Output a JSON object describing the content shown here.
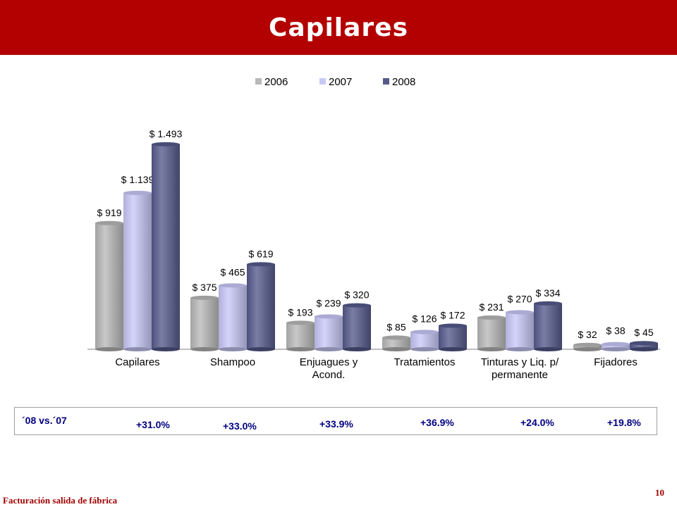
{
  "header": {
    "title": "Capilares"
  },
  "chart_data": {
    "type": "bar",
    "title": "",
    "xlabel": "",
    "ylabel": "",
    "ylim": [
      0,
      1600
    ],
    "grid": false,
    "legend_position": "top",
    "categories": [
      [
        "Capilares"
      ],
      [
        "Shampoo"
      ],
      [
        "Enjuagues y",
        "Acond."
      ],
      [
        "Tratamientos"
      ],
      [
        "Tinturas y Liq. p/",
        "permanente"
      ],
      [
        "Fijadores"
      ]
    ],
    "series": [
      {
        "name": "2006",
        "color": "#b9b9b9",
        "values": [
          919,
          375,
          193,
          85,
          231,
          32
        ],
        "labels": [
          "$ 919",
          "$ 375",
          "$ 193",
          "$ 85",
          "$ 231",
          "$ 32"
        ]
      },
      {
        "name": "2007",
        "color": "#c8c8f8",
        "values": [
          1139,
          465,
          239,
          126,
          270,
          38
        ],
        "labels": [
          "$ 1.139",
          "$ 465",
          "$ 239",
          "$ 126",
          "$ 270",
          "$ 38"
        ]
      },
      {
        "name": "2008",
        "color": "#555a8c",
        "values": [
          1493,
          619,
          320,
          172,
          334,
          45
        ],
        "labels": [
          "$ 1.493",
          "$ 619",
          "$ 320",
          "$ 172",
          "$ 334",
          "$ 45"
        ]
      }
    ]
  },
  "growth": {
    "title": "´08 vs.´07",
    "values": [
      "+31.0%",
      "+33.0%",
      "+33.9%",
      "+36.9%",
      "+24.0%",
      "+19.8%"
    ]
  },
  "footer": {
    "left": "Facturación salida de fábrica",
    "page_number": "10"
  }
}
